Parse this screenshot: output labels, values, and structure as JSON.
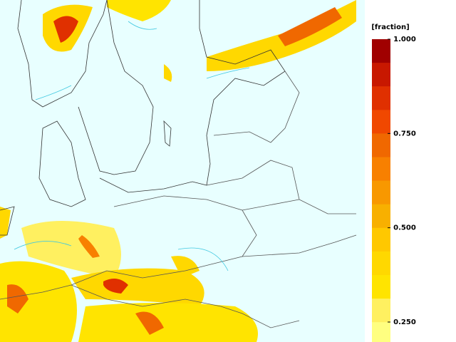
{
  "colorbar": {
    "title": "[fraction]",
    "ticks": [
      {
        "value": 1,
        "label": "1.000"
      },
      {
        "value": 0.75,
        "label": "0.750"
      },
      {
        "value": 0.5,
        "label": "0.500"
      },
      {
        "value": 0.25,
        "label": "0.250"
      }
    ],
    "colors": [
      "#a00000",
      "#c81800",
      "#e03000",
      "#f04800",
      "#f06800",
      "#f88000",
      "#f89800",
      "#f8b000",
      "#ffc800",
      "#ffd800",
      "#ffe400",
      "#fff060",
      "#ffff80"
    ]
  }
}
